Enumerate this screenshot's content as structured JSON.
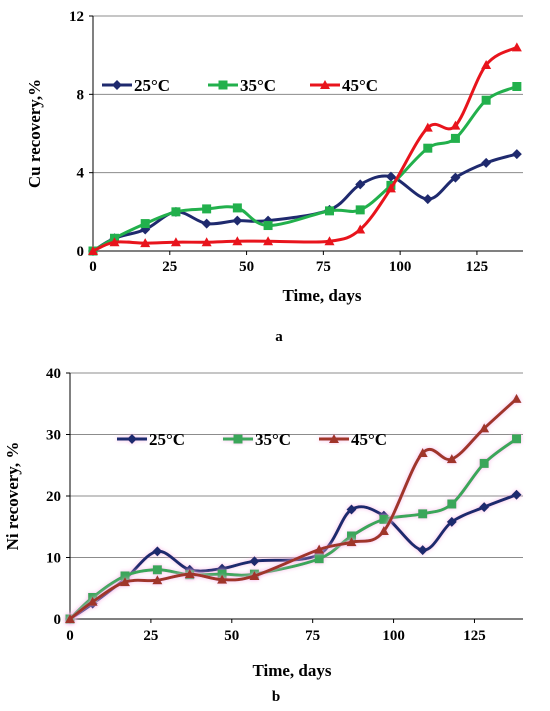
{
  "chart_data": [
    {
      "type": "line",
      "panel_label": "a",
      "xlabel": "Time, days",
      "ylabel": "Cu recovery,%",
      "xlim": [
        0,
        140
      ],
      "ylim": [
        0,
        12
      ],
      "xticks": [
        0,
        25,
        50,
        75,
        100,
        125
      ],
      "yticks": [
        0,
        4,
        8,
        12
      ],
      "grid": "horizontal",
      "legend_position": "top-left",
      "series": [
        {
          "name": "25°C",
          "color": "#1f2a6e",
          "marker": "diamond",
          "x": [
            0,
            7,
            17,
            27,
            37,
            47,
            57,
            77,
            87,
            97,
            109,
            118,
            128,
            138
          ],
          "y": [
            0,
            0.65,
            1.1,
            2.0,
            1.4,
            1.55,
            1.55,
            2.1,
            3.4,
            3.8,
            2.65,
            3.75,
            4.5,
            4.95
          ]
        },
        {
          "name": "35°C",
          "color": "#22b04c",
          "marker": "square",
          "x": [
            0,
            7,
            17,
            27,
            37,
            47,
            57,
            77,
            87,
            97,
            109,
            118,
            128,
            138
          ],
          "y": [
            0,
            0.65,
            1.4,
            2.0,
            2.15,
            2.2,
            1.3,
            2.05,
            2.1,
            3.35,
            5.25,
            5.75,
            7.7,
            8.4
          ]
        },
        {
          "name": "45°C",
          "color": "#e8141c",
          "marker": "triangle",
          "x": [
            0,
            7,
            17,
            27,
            37,
            47,
            57,
            77,
            87,
            97,
            109,
            118,
            128,
            138
          ],
          "y": [
            0,
            0.45,
            0.4,
            0.45,
            0.45,
            0.5,
            0.5,
            0.5,
            1.1,
            3.2,
            6.3,
            6.4,
            9.5,
            10.4
          ]
        }
      ]
    },
    {
      "type": "line",
      "panel_label": "b",
      "xlabel": "Time, days",
      "ylabel": "Ni recovery, %",
      "xlim": [
        0,
        140
      ],
      "ylim": [
        0,
        40
      ],
      "xticks": [
        0,
        25,
        50,
        75,
        100,
        125
      ],
      "yticks": [
        0,
        10,
        20,
        30,
        40
      ],
      "grid": "horizontal",
      "legend_position": "top-center",
      "series": [
        {
          "name": "25°C",
          "color": "#1f2a6e",
          "marker": "diamond",
          "x": [
            0,
            7,
            17,
            27,
            37,
            47,
            57,
            77,
            87,
            97,
            109,
            118,
            128,
            138
          ],
          "y": [
            0,
            2.5,
            6.5,
            11.0,
            8.0,
            8.2,
            9.4,
            10.5,
            17.8,
            16.8,
            11.2,
            15.8,
            18.2,
            20.2
          ]
        },
        {
          "name": "35°C",
          "color": "#3aa65a",
          "marker": "square",
          "x": [
            0,
            7,
            17,
            27,
            37,
            47,
            57,
            77,
            87,
            97,
            109,
            118,
            128,
            138
          ],
          "y": [
            0,
            3.5,
            7.0,
            8.0,
            7.2,
            7.3,
            7.3,
            9.8,
            13.5,
            16.2,
            17.1,
            18.7,
            25.3,
            29.3
          ]
        },
        {
          "name": "45°C",
          "color": "#a0342a",
          "marker": "triangle",
          "x": [
            0,
            7,
            17,
            27,
            37,
            47,
            57,
            77,
            87,
            97,
            109,
            118,
            128,
            138
          ],
          "y": [
            0,
            2.8,
            6.0,
            6.3,
            7.3,
            6.4,
            7.0,
            11.3,
            12.5,
            14.3,
            27.0,
            26.0,
            31.0,
            35.8
          ]
        }
      ]
    }
  ]
}
